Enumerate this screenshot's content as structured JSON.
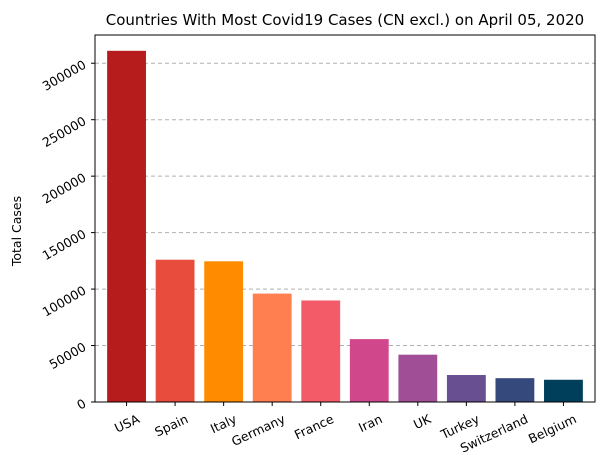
{
  "chart_data": {
    "type": "bar",
    "title": "Countries With Most Covid19 Cases (CN excl.) on April 05, 2020",
    "xlabel": "",
    "ylabel": "Total Cases",
    "categories": [
      "USA",
      "Spain",
      "Italy",
      "Germany",
      "France",
      "Iran",
      "UK",
      "Turkey",
      "Switzerland",
      "Belgium"
    ],
    "values": [
      311000,
      126000,
      124600,
      96000,
      89900,
      55700,
      41900,
      23900,
      21100,
      19700
    ],
    "colors": [
      "#b71c1c",
      "#e74c3c",
      "#ff8c00",
      "#ff7f50",
      "#f45b69",
      "#d1478b",
      "#a04f96",
      "#674f91",
      "#36497c",
      "#003f5c"
    ],
    "ylim": [
      0,
      325000
    ],
    "yticks": [
      0,
      50000,
      100000,
      150000,
      200000,
      250000,
      300000
    ],
    "ytick_labels": [
      "0",
      "50000",
      "100000",
      "150000",
      "200000",
      "250000",
      "300000"
    ],
    "grid": "y-dashed",
    "legend": "none"
  }
}
